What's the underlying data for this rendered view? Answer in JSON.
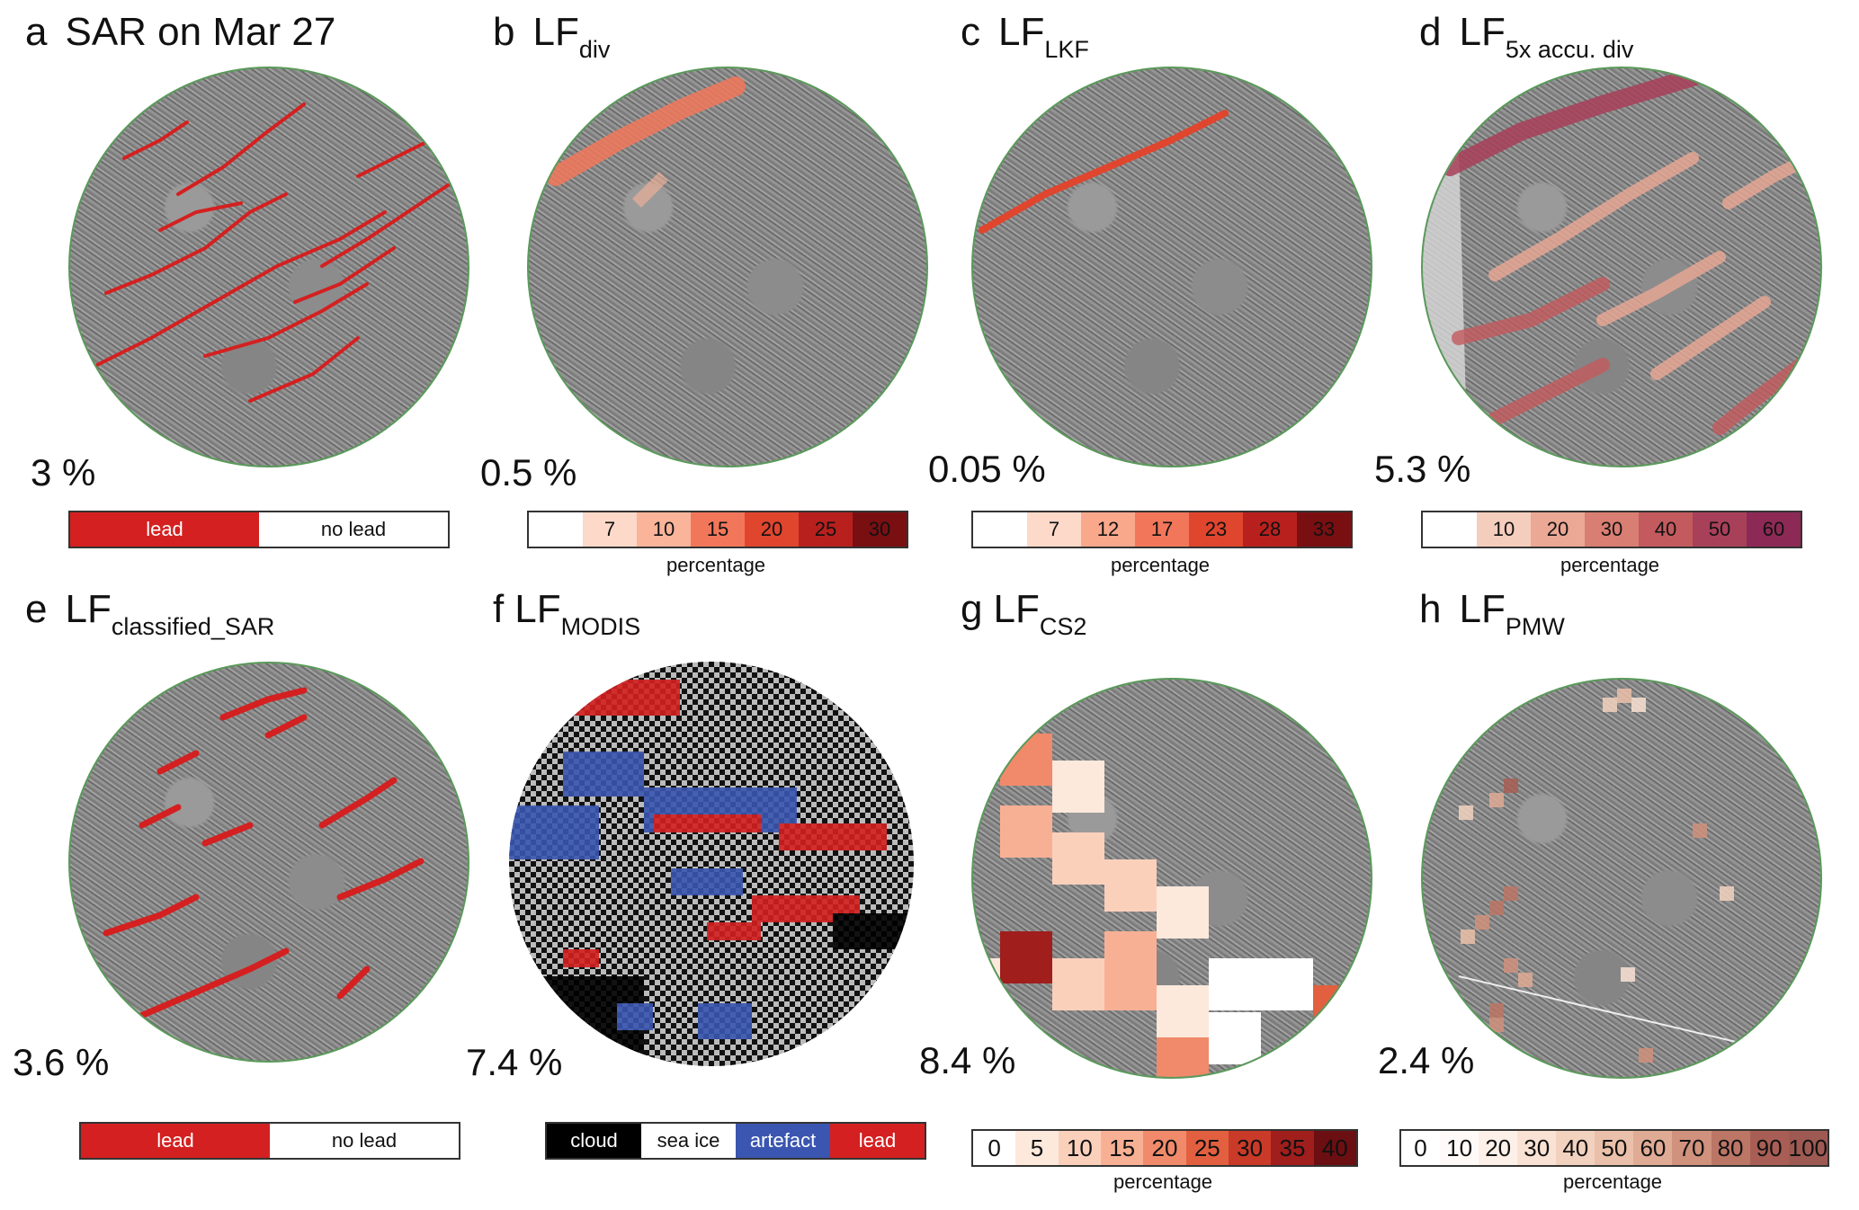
{
  "panels": {
    "a": {
      "letter": "a",
      "title": "SAR on Mar 27",
      "sub": "",
      "pct": "3 %",
      "legend": [
        "lead",
        "no lead"
      ]
    },
    "b": {
      "letter": "b",
      "title": "LF",
      "sub": "div",
      "pct": "0.5 %",
      "ticks": [
        "",
        "7",
        "10",
        "15",
        "20",
        "25",
        "30"
      ],
      "cblabel": "percentage"
    },
    "c": {
      "letter": "c",
      "title": "LF",
      "sub": "LKF",
      "pct": "0.05 %",
      "ticks": [
        "",
        "7",
        "12",
        "17",
        "23",
        "28",
        "33"
      ],
      "cblabel": "percentage"
    },
    "d": {
      "letter": "d",
      "title": "LF",
      "sub": "5x accu. div",
      "pct": "5.3 %",
      "ticks": [
        "",
        "10",
        "20",
        "30",
        "40",
        "50",
        "60"
      ],
      "cblabel": "percentage"
    },
    "e": {
      "letter": "e",
      "title": "LF",
      "sub": "classified_SAR",
      "pct": "3.6 %",
      "legend": [
        "lead",
        "no lead"
      ]
    },
    "f": {
      "letter": "f",
      "title": "LF",
      "sub": "MODIS",
      "pct": "7.4 %",
      "legend": [
        "cloud",
        "sea ice",
        "artefact",
        "lead"
      ]
    },
    "g": {
      "letter": "g",
      "title": "LF",
      "sub": "CS2",
      "pct": "8.4 %",
      "ticks": [
        "0",
        "5",
        "10",
        "15",
        "20",
        "25",
        "30",
        "35",
        "40"
      ],
      "cblabel": "percentage"
    },
    "h": {
      "letter": "h",
      "title": "LF",
      "sub": "PMW",
      "pct": "2.4 %",
      "ticks": [
        "0",
        "10",
        "20",
        "30",
        "40",
        "50",
        "60",
        "70",
        "80",
        "90",
        "100"
      ],
      "cblabel": "percentage"
    }
  },
  "colors": {
    "lead": "#d42020",
    "circle_border": "#5a9a5a",
    "cloud": "#000000",
    "sea_ice": "#ffffff",
    "artefact": "#3a56b0",
    "div_scale": [
      "#ffffff",
      "#fcd9c8",
      "#f9b49a",
      "#f2775a",
      "#e0452e",
      "#b8201e",
      "#7a0f12"
    ],
    "lkf_scale": [
      "#ffffff",
      "#fcd9c8",
      "#f9a88c",
      "#f2775a",
      "#e0452e",
      "#b8201e",
      "#7a0f12"
    ],
    "accu_scale": [
      "#ffffff",
      "#f5cdbd",
      "#eba895",
      "#d97e72",
      "#c35a5e",
      "#a8405a",
      "#8c2a55"
    ],
    "cs2_scale": [
      "#ffffff",
      "#fde8dc",
      "#fbd0bb",
      "#f8b095",
      "#f08a6a",
      "#e2603f",
      "#c93a28",
      "#a01e1c",
      "#6c0f12"
    ],
    "pmw_scale": [
      "#ffffff",
      "#fffaf7",
      "#fdf0e8",
      "#f9e2d3",
      "#f2d2bf",
      "#eac0aa",
      "#e0ab95",
      "#d0917d",
      "#bb7666",
      "#a85e54",
      "#9e5a52"
    ]
  }
}
